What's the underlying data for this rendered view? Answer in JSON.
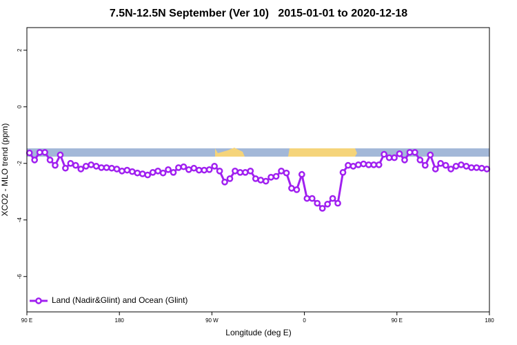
{
  "chart_data": {
    "type": "line",
    "title": "7.5N-12.5N September (Ver 10)   2015-01-01 to 2020-12-18",
    "x_label": "Longitude (deg E)",
    "y_label": "XCO2 - MLO trend (ppm)",
    "xlim": [
      90,
      540
    ],
    "ylim": [
      -7.25,
      2.8
    ],
    "xticks": [
      {
        "value": 90,
        "label": "90 E"
      },
      180,
      {
        "value": 270,
        "label": "90 W"
      },
      {
        "value": 360,
        "label": "0"
      },
      {
        "value": 450,
        "label": "90 E"
      },
      {
        "value": 540,
        "label": "180"
      }
    ],
    "yticks": [
      2,
      0,
      -2,
      -4,
      -6
    ],
    "legend": "bottom-left",
    "x": [
      92.5,
      97.5,
      102.5,
      107.5,
      112.5,
      117.5,
      122.5,
      127.5,
      132.5,
      137.5,
      142.5,
      147.5,
      152.5,
      157.5,
      162.5,
      167.5,
      172.5,
      177.5,
      182.5,
      187.5,
      192.5,
      197.5,
      202.5,
      207.5,
      212.5,
      217.5,
      222.5,
      227.5,
      232.5,
      237.5,
      242.5,
      247.5,
      252.5,
      257.5,
      262.5,
      267.5,
      272.5,
      277.5,
      282.5,
      287.5,
      292.5,
      297.5,
      302.5,
      307.5,
      312.5,
      317.5,
      322.5,
      327.5,
      332.5,
      337.5,
      342.5,
      347.5,
      352.5,
      357.5,
      362.5,
      367.5,
      372.5,
      377.5,
      382.5,
      387.5,
      392.5,
      397.5,
      402.5,
      407.5,
      412.5,
      417.5,
      422.5,
      427.5,
      432.5,
      437.5,
      442.5,
      447.5,
      452.5,
      457.5,
      462.5,
      467.5,
      472.5,
      477.5,
      482.5,
      487.5,
      492.5,
      497.5,
      502.5,
      507.5,
      512.5,
      517.5,
      522.5,
      527.5,
      532.5,
      537.5
    ],
    "series": [
      {
        "name": "Land (Nadir&Glint) and Ocean (Glint)",
        "color": "#a020f0",
        "values": [
          -1.63,
          -1.88,
          -1.61,
          -1.61,
          -1.88,
          -2.07,
          -1.7,
          -2.17,
          -2.0,
          -2.07,
          -2.2,
          -2.1,
          -2.05,
          -2.1,
          -2.15,
          -2.15,
          -2.17,
          -2.2,
          -2.27,
          -2.24,
          -2.29,
          -2.34,
          -2.37,
          -2.41,
          -2.32,
          -2.27,
          -2.34,
          -2.22,
          -2.32,
          -2.15,
          -2.12,
          -2.22,
          -2.17,
          -2.24,
          -2.24,
          -2.22,
          -2.1,
          -2.27,
          -2.66,
          -2.54,
          -2.27,
          -2.32,
          -2.32,
          -2.27,
          -2.54,
          -2.59,
          -2.63,
          -2.49,
          -2.46,
          -2.27,
          -2.34,
          -2.88,
          -2.93,
          -2.39,
          -3.24,
          -3.24,
          -3.41,
          -3.59,
          -3.44,
          -3.24,
          -3.41,
          -2.32,
          -2.07,
          -2.1,
          -2.05,
          -2.02,
          -2.05,
          -2.05,
          -2.05,
          -1.68,
          -1.8,
          -1.8,
          -1.66,
          -1.88,
          -1.61,
          -1.61,
          -1.88,
          -2.07,
          -1.7,
          -2.2,
          -2.0,
          -2.07,
          -2.2,
          -2.1,
          -2.05,
          -2.1,
          -2.15,
          -2.15,
          -2.17,
          -2.2
        ]
      }
    ]
  }
}
